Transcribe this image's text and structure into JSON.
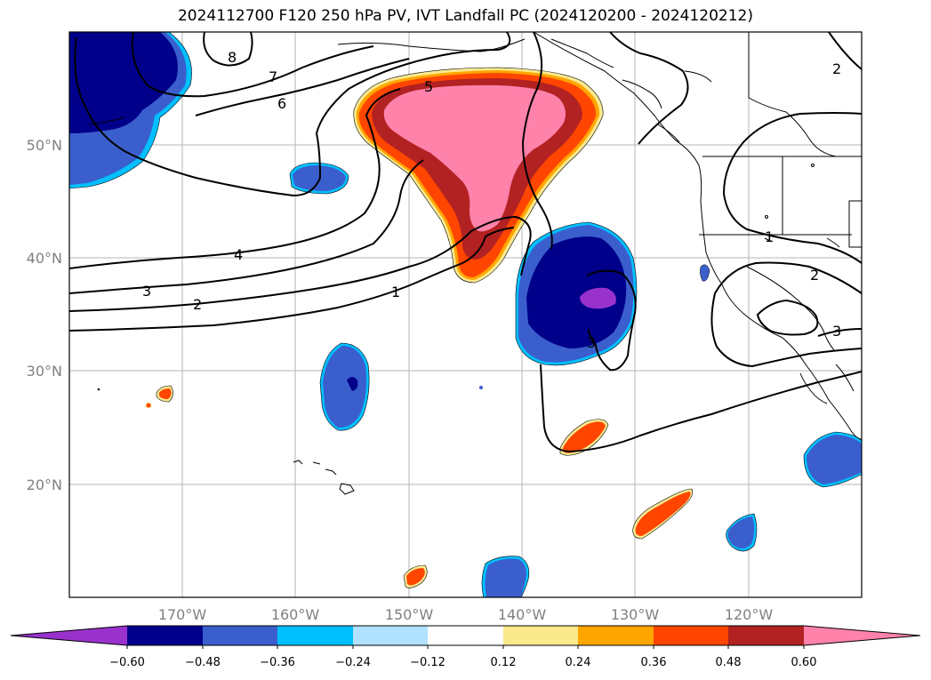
{
  "title": "2024112700 F120 250 hPa PV, IVT Landfall PC (2024120200 - 2024120212)",
  "latitude_labels": [
    "50°N",
    "40°N",
    "30°N",
    "20°N"
  ],
  "longitude_labels": [
    "170°W",
    "160°W",
    "150°W",
    "140°W",
    "130°W",
    "120°W"
  ],
  "contour_labels": [
    "8",
    "7",
    "6",
    "5",
    "4",
    "3",
    "2",
    "1",
    "3",
    "2",
    "1",
    "2",
    "3"
  ],
  "colorbar": {
    "tick_labels": [
      "−0.60",
      "−0.48",
      "−0.36",
      "−0.24",
      "−0.12",
      "0.12",
      "0.24",
      "0.36",
      "0.48",
      "0.60"
    ],
    "colors": [
      "#9932cc",
      "#00008b",
      "#3a5fcd",
      "#00bfff",
      "#b0e2ff",
      "#ffffff",
      "#fbe98e",
      "#ffa500",
      "#ff4500",
      "#b22222",
      "#ff82ab"
    ]
  }
}
